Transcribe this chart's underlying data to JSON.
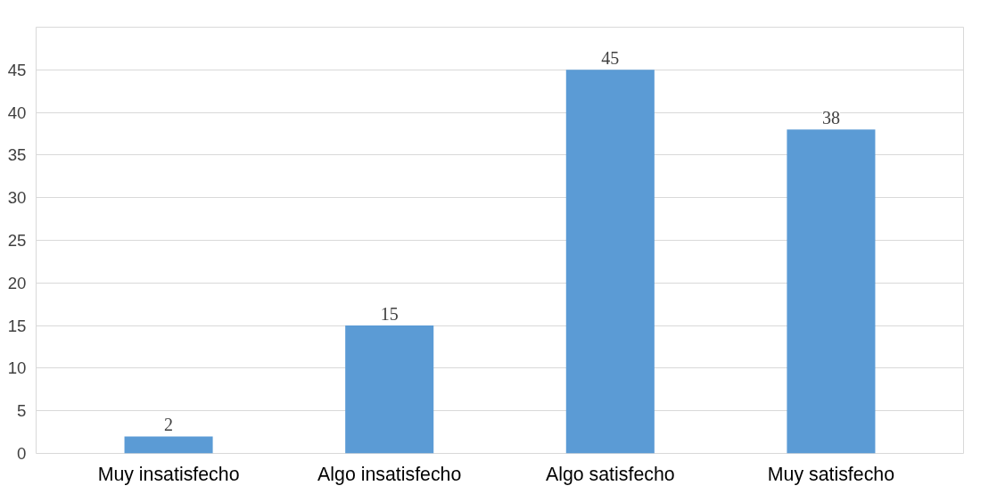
{
  "chart_data": {
    "type": "bar",
    "categories": [
      "Muy insatisfecho",
      "Algo insatisfecho",
      "Algo satisfecho",
      "Muy satisfecho"
    ],
    "values": [
      2,
      15,
      45,
      38
    ],
    "color": "#5b9bd5",
    "ylim": [
      0,
      50
    ],
    "yticks": [
      0,
      5,
      10,
      15,
      20,
      25,
      30,
      35,
      40,
      45
    ],
    "grid": "y",
    "data_labels": true
  }
}
